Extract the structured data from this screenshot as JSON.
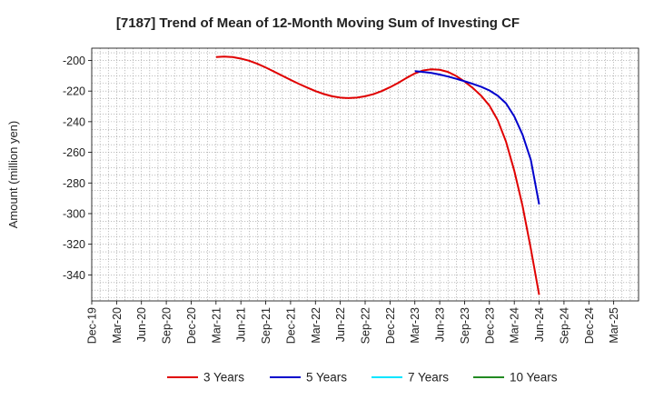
{
  "chart_data": {
    "type": "line",
    "title": "[7187]  Trend of Mean of 12-Month Moving Sum of Investing CF",
    "xlabel": "",
    "ylabel": "Amount (million yen)",
    "ylim": [
      -357,
      -192
    ],
    "yticks": [
      -200,
      -220,
      -240,
      -260,
      -280,
      -300,
      -320,
      -340
    ],
    "xlim": [
      0,
      66
    ],
    "x_tick_labels": [
      "Dec-19",
      "Mar-20",
      "Jun-20",
      "Sep-20",
      "Dec-20",
      "Mar-21",
      "Jun-21",
      "Sep-21",
      "Dec-21",
      "Mar-22",
      "Jun-22",
      "Sep-22",
      "Dec-22",
      "Mar-23",
      "Jun-23",
      "Sep-23",
      "Dec-23",
      "Mar-24",
      "Jun-24",
      "Sep-24",
      "Dec-24",
      "Mar-25"
    ],
    "grid": true,
    "legend_position": "bottom",
    "series": [
      {
        "name": "3 Years",
        "color": "#e00000",
        "points": [
          [
            15,
            -197.8
          ],
          [
            16,
            -197.5
          ],
          [
            17,
            -197.8
          ],
          [
            18,
            -198.8
          ],
          [
            19,
            -200.2
          ],
          [
            20,
            -202.2
          ],
          [
            21,
            -204.6
          ],
          [
            22,
            -207.3
          ],
          [
            23,
            -210.0
          ],
          [
            24,
            -212.7
          ],
          [
            25,
            -215.3
          ],
          [
            26,
            -217.7
          ],
          [
            27,
            -220.0
          ],
          [
            28,
            -221.9
          ],
          [
            29,
            -223.4
          ],
          [
            30,
            -224.3
          ],
          [
            31,
            -224.6
          ],
          [
            32,
            -224.3
          ],
          [
            33,
            -223.4
          ],
          [
            34,
            -222.0
          ],
          [
            35,
            -220.0
          ],
          [
            36,
            -217.5
          ],
          [
            37,
            -214.6
          ],
          [
            38,
            -211.4
          ],
          [
            39,
            -208.5
          ],
          [
            40,
            -206.5
          ],
          [
            41,
            -205.8
          ],
          [
            42,
            -206.1
          ],
          [
            43,
            -207.5
          ],
          [
            44,
            -210.2
          ],
          [
            45,
            -213.8
          ],
          [
            46,
            -218.0
          ],
          [
            47,
            -223.0
          ],
          [
            48,
            -229.5
          ],
          [
            49,
            -239.0
          ],
          [
            50,
            -253.0
          ],
          [
            51,
            -272.0
          ],
          [
            52,
            -295.0
          ],
          [
            53,
            -323.0
          ],
          [
            54,
            -353.0
          ]
        ]
      },
      {
        "name": "5 Years",
        "color": "#0000cc",
        "points": [
          [
            39,
            -207.0
          ],
          [
            40,
            -207.5
          ],
          [
            41,
            -208.2
          ],
          [
            42,
            -209.2
          ],
          [
            43,
            -210.5
          ],
          [
            44,
            -212.0
          ],
          [
            45,
            -213.6
          ],
          [
            46,
            -215.3
          ],
          [
            47,
            -217.2
          ],
          [
            48,
            -219.6
          ],
          [
            49,
            -223.0
          ],
          [
            50,
            -228.0
          ],
          [
            51,
            -236.5
          ],
          [
            52,
            -248.5
          ],
          [
            53,
            -265.0
          ],
          [
            54,
            -294.0
          ]
        ]
      },
      {
        "name": "7 Years",
        "color": "#00e5ff",
        "points": []
      },
      {
        "name": "10 Years",
        "color": "#228b22",
        "points": []
      }
    ]
  }
}
